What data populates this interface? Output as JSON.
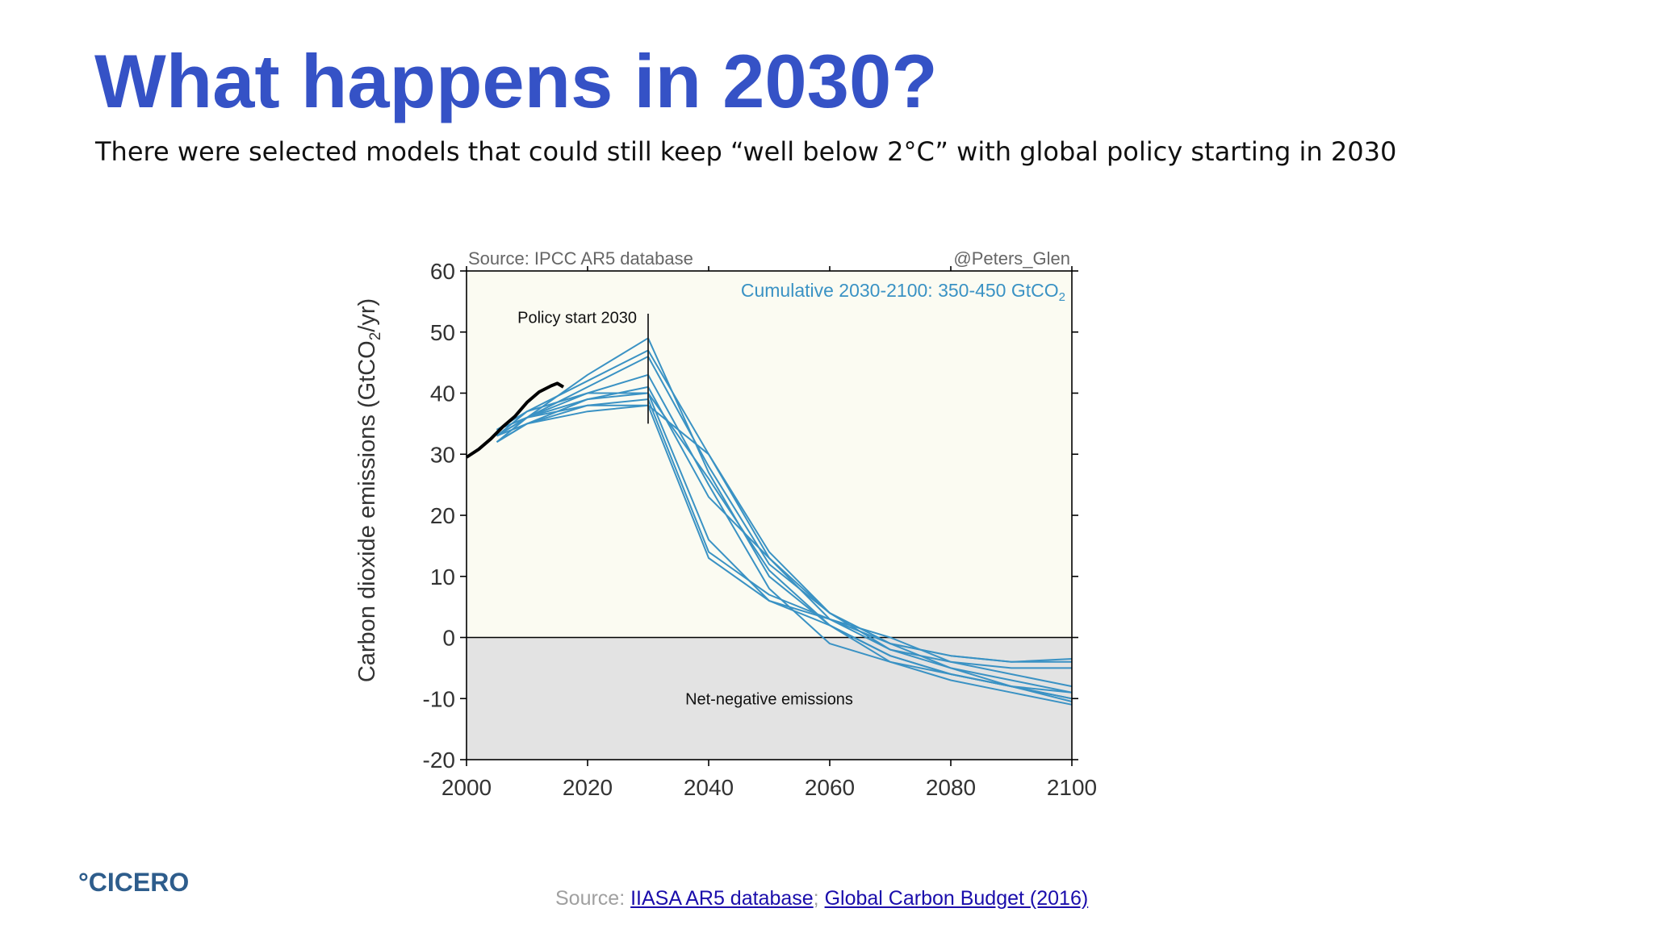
{
  "slide": {
    "title": "What happens in 2030?",
    "subtitle": "There were selected models that could still keep “well below 2°C” with global policy starting in 2030",
    "logo_mark": "°",
    "logo_text": "CICERO",
    "source_prefix": "Source: ",
    "source_link_1": "IIASA AR5 database",
    "source_separator": ";",
    "source_link_2": "Global Carbon Budget (2016)"
  },
  "chart_data": {
    "type": "line",
    "title": "",
    "source_note": "Source: IPCC AR5 database",
    "credit": "@Peters_Glen",
    "cumulative_label": "Cumulative 2030-2100: 350-450 GtCO",
    "cumulative_label_sub": "2",
    "policy_label": "Policy start 2030",
    "policy_year": 2030,
    "negative_region_label": "Net-negative emissions",
    "ylabel": "Carbon dioxide emissions (GtCO",
    "ylabel_sub": "2",
    "ylabel_suffix": "/yr)",
    "xlabel": "",
    "xlim": [
      2000,
      2100
    ],
    "ylim": [
      -20,
      60
    ],
    "x_ticks": [
      2000,
      2020,
      2040,
      2060,
      2080,
      2100
    ],
    "y_ticks": [
      60,
      50,
      40,
      30,
      20,
      10,
      0,
      -10,
      -20
    ],
    "grid": false,
    "colors": {
      "historical": "#000000",
      "scenarios": "#3a92c4",
      "plot_bg": "#fbfbf2",
      "negative_bg": "#e3e3e3",
      "annotation_blue": "#3a92c4",
      "text_gray": "#666666"
    },
    "historical": {
      "x": [
        2000,
        2002,
        2004,
        2006,
        2008,
        2010,
        2012,
        2014,
        2015,
        2016
      ],
      "y": [
        29.5,
        30.8,
        32.5,
        34.5,
        36.2,
        38.5,
        40.2,
        41.2,
        41.6,
        41.0
      ]
    },
    "scenarios": [
      {
        "x": [
          2005,
          2010,
          2020,
          2030,
          2040,
          2050,
          2060,
          2070,
          2080,
          2090,
          2100
        ],
        "y": [
          32,
          36,
          43,
          49,
          27,
          10,
          2,
          -3,
          -6,
          -8,
          -10
        ]
      },
      {
        "x": [
          2005,
          2010,
          2020,
          2030,
          2040,
          2050,
          2060,
          2070,
          2080,
          2090,
          2100
        ],
        "y": [
          33,
          37,
          42,
          47,
          30,
          13,
          3,
          -2,
          -4,
          -5,
          -5
        ]
      },
      {
        "x": [
          2005,
          2010,
          2020,
          2030,
          2040,
          2050,
          2060,
          2070,
          2080,
          2090,
          2100
        ],
        "y": [
          34,
          36,
          41,
          46,
          28,
          12,
          4,
          -2,
          -5,
          -8,
          -10
        ]
      },
      {
        "x": [
          2005,
          2010,
          2020,
          2030,
          2040,
          2050,
          2060,
          2070,
          2080,
          2090,
          2100
        ],
        "y": [
          33,
          36,
          40,
          43,
          25,
          8,
          -1,
          -4,
          -7,
          -9,
          -11
        ]
      },
      {
        "x": [
          2005,
          2010,
          2020,
          2030,
          2040,
          2050,
          2060,
          2070,
          2080,
          2090,
          2100
        ],
        "y": [
          32,
          35,
          39,
          41,
          23,
          13,
          4,
          -1,
          -3,
          -4,
          -4
        ]
      },
      {
        "x": [
          2005,
          2010,
          2020,
          2030,
          2040,
          2050,
          2060,
          2070,
          2080,
          2090,
          2100
        ],
        "y": [
          33,
          36,
          39,
          40,
          16,
          6,
          2,
          -3,
          -6,
          -8,
          -9
        ]
      },
      {
        "x": [
          2005,
          2010,
          2020,
          2030,
          2040,
          2050,
          2060,
          2070,
          2080,
          2090,
          2100
        ],
        "y": [
          34,
          36,
          38,
          39,
          14,
          7,
          3,
          -1,
          -5,
          -7,
          -9
        ]
      },
      {
        "x": [
          2005,
          2010,
          2020,
          2030,
          2040,
          2050,
          2060,
          2070,
          2080,
          2090,
          2100
        ],
        "y": [
          32,
          35,
          38,
          38,
          13,
          6,
          3,
          0,
          -4,
          -6,
          -8
        ]
      },
      {
        "x": [
          2005,
          2010,
          2020,
          2030,
          2040,
          2050,
          2060,
          2070,
          2080,
          2090,
          2100
        ],
        "y": [
          33,
          35,
          37,
          38,
          30,
          14,
          4,
          -1,
          -3,
          -4,
          -3.5
        ]
      },
      {
        "x": [
          2005,
          2010,
          2020,
          2030,
          2040,
          2050,
          2060,
          2070,
          2080,
          2090,
          2100
        ],
        "y": [
          34,
          37,
          40,
          40,
          26,
          11,
          2,
          -4,
          -6,
          -8,
          -10.5
        ]
      }
    ]
  }
}
